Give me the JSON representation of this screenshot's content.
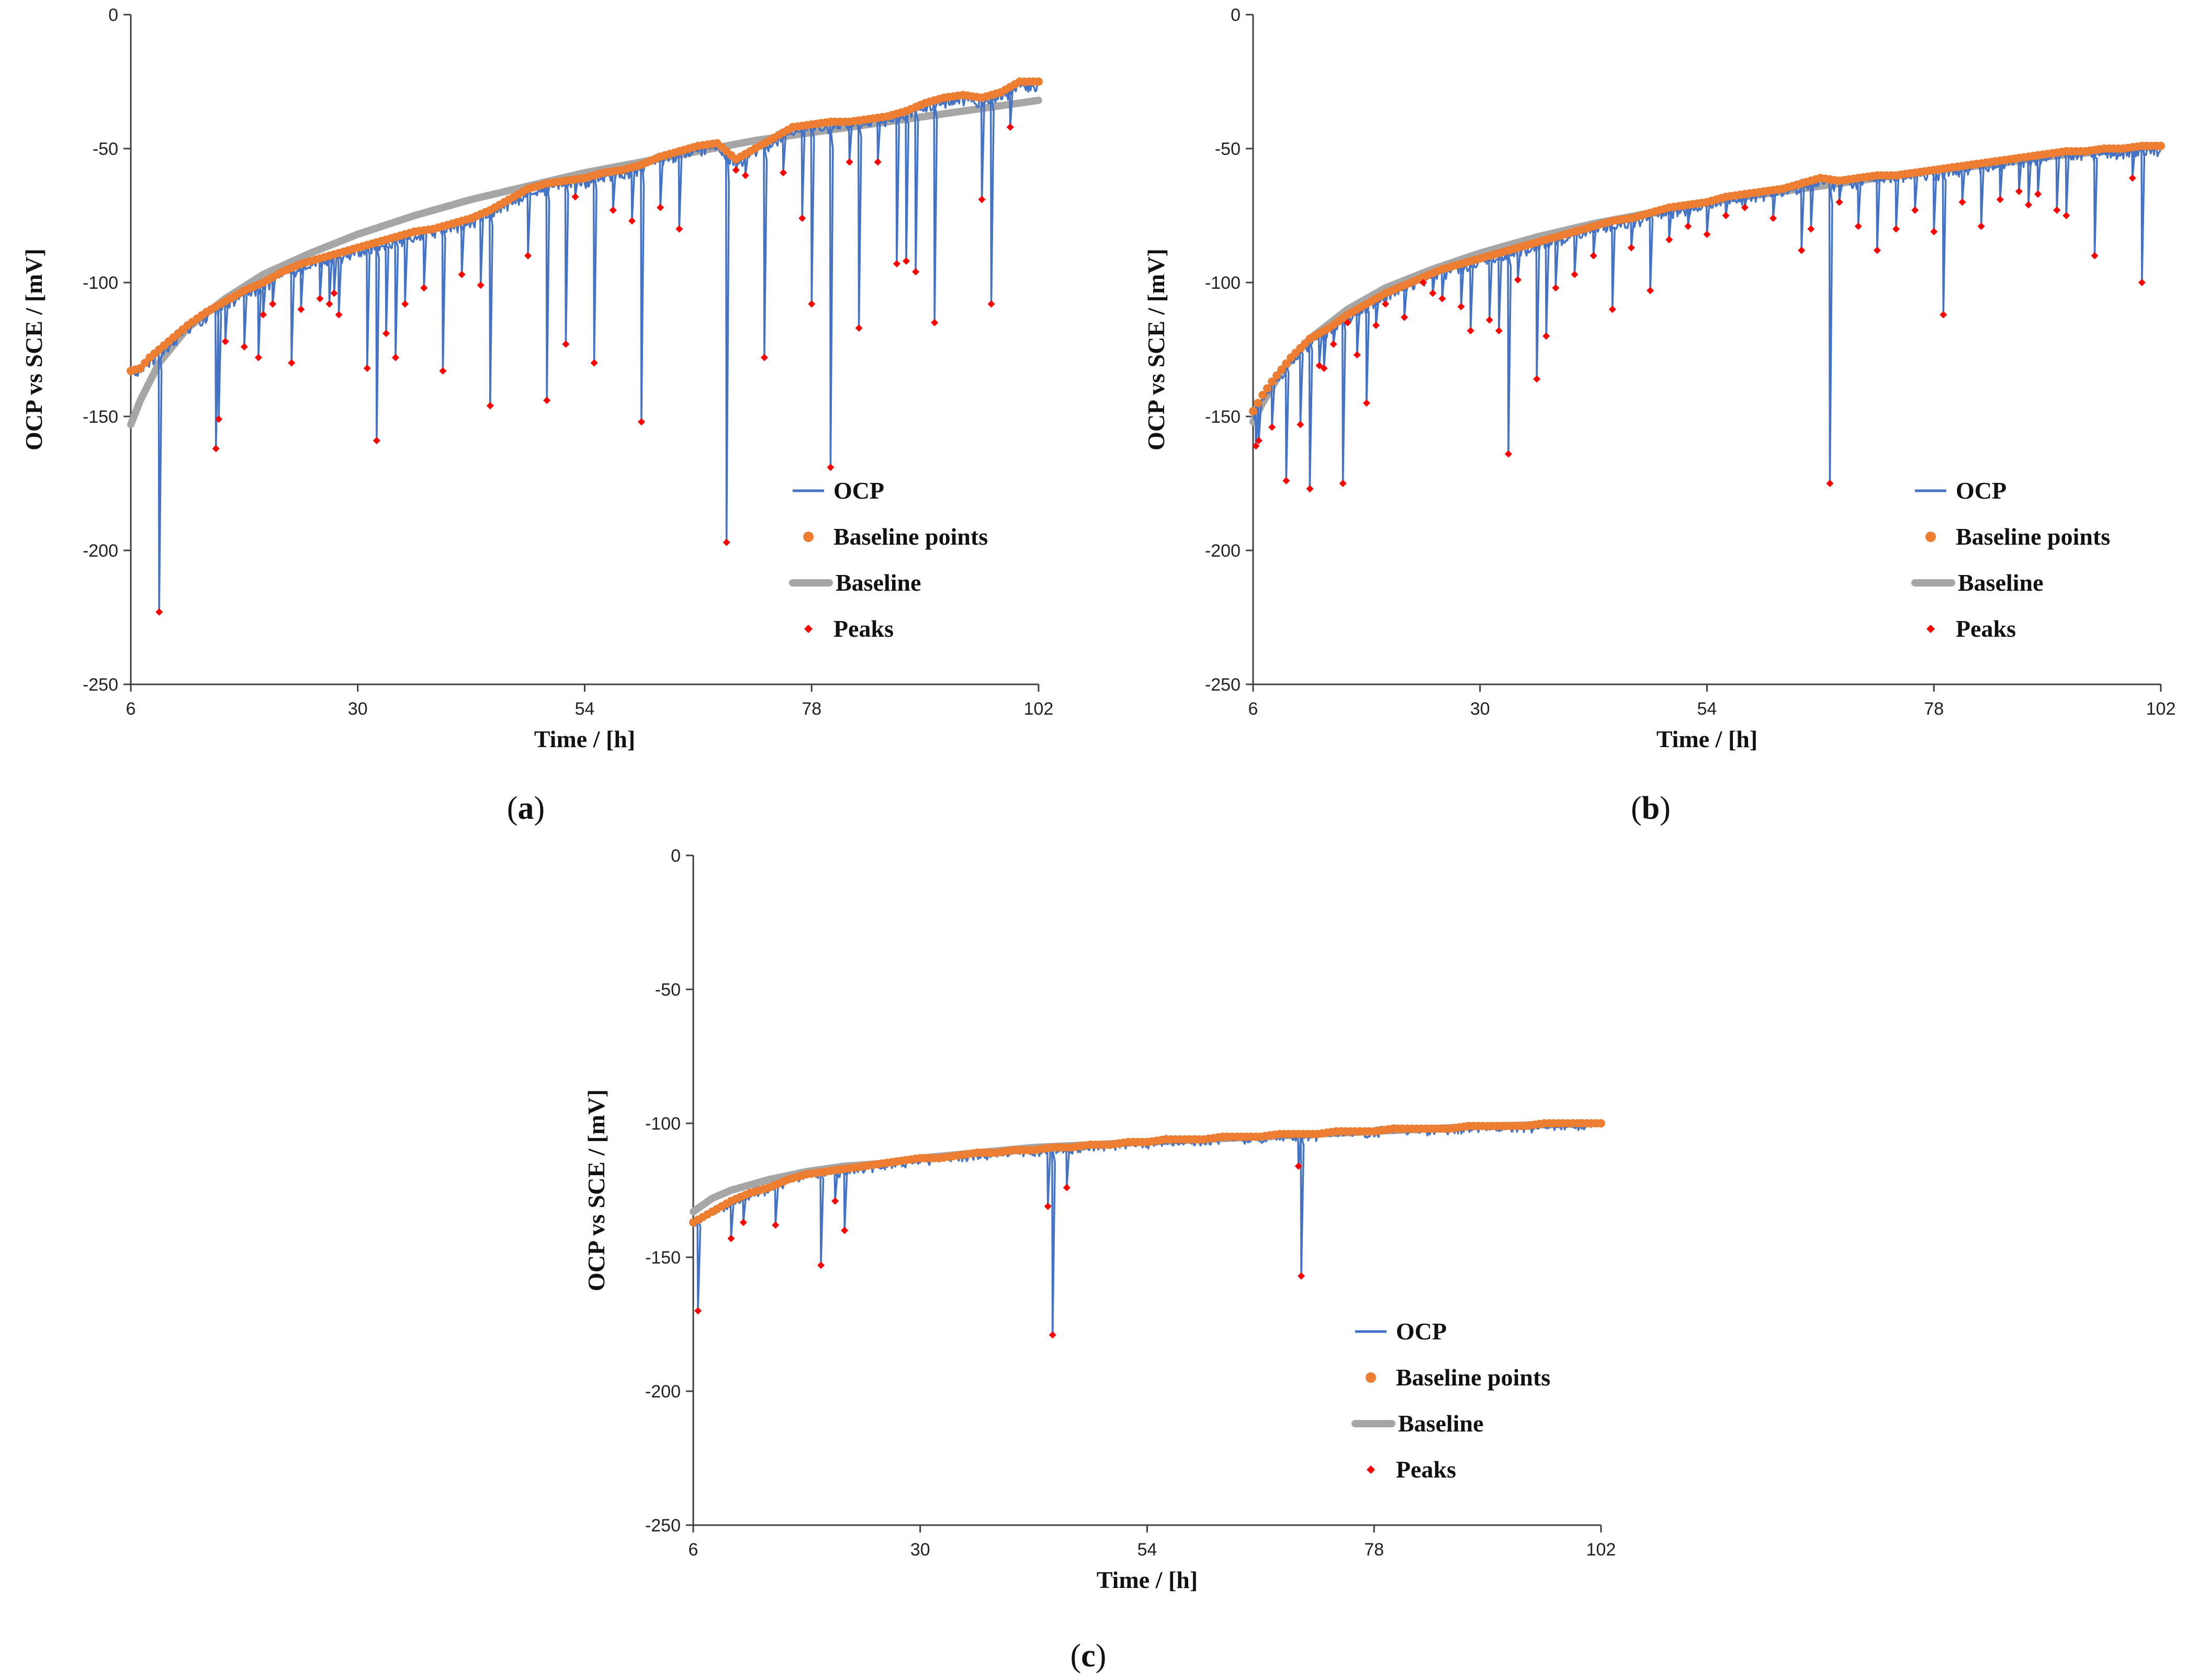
{
  "colors": {
    "ocp": "#4472C4",
    "baseline_points": "#ED7D31",
    "baseline": "#A6A6A6",
    "peaks": "#FF0000",
    "axis": "#404040"
  },
  "chart_data": [
    {
      "panel": "a",
      "type": "line",
      "caption": "(a)",
      "caption_letter": "a",
      "xlabel": "Time / [h]",
      "ylabel": "OCP vs SCE / [mV]",
      "xlim": [
        6,
        102
      ],
      "ylim": [
        -250,
        0
      ],
      "xticks": [
        6,
        30,
        54,
        78,
        102
      ],
      "yticks": [
        0,
        -50,
        -100,
        -150,
        -200,
        -250
      ],
      "legend": [
        "OCP",
        "Baseline points",
        "Baseline",
        "Peaks"
      ],
      "legend_position": "bottom-right",
      "baseline_curve": [
        [
          6,
          -153
        ],
        [
          7,
          -144
        ],
        [
          9,
          -130
        ],
        [
          12,
          -117
        ],
        [
          16,
          -106
        ],
        [
          20,
          -97
        ],
        [
          25,
          -89
        ],
        [
          30,
          -82
        ],
        [
          36,
          -75
        ],
        [
          42,
          -69
        ],
        [
          48,
          -64
        ],
        [
          54,
          -59
        ],
        [
          60,
          -55
        ],
        [
          66,
          -51
        ],
        [
          72,
          -47
        ],
        [
          78,
          -44
        ],
        [
          84,
          -41
        ],
        [
          90,
          -38
        ],
        [
          96,
          -35
        ],
        [
          102,
          -32
        ]
      ],
      "baseline_points": [
        [
          6,
          -133
        ],
        [
          7,
          -132
        ],
        [
          8,
          -128
        ],
        [
          10,
          -122
        ],
        [
          12,
          -116
        ],
        [
          14,
          -111
        ],
        [
          16,
          -107
        ],
        [
          18,
          -103
        ],
        [
          20,
          -100
        ],
        [
          22,
          -96
        ],
        [
          24,
          -93
        ],
        [
          26,
          -91
        ],
        [
          28,
          -89
        ],
        [
          30,
          -87
        ],
        [
          32,
          -85
        ],
        [
          34,
          -83
        ],
        [
          36,
          -81
        ],
        [
          38,
          -80
        ],
        [
          40,
          -78
        ],
        [
          42,
          -76
        ],
        [
          44,
          -73
        ],
        [
          46,
          -69
        ],
        [
          48,
          -65
        ],
        [
          50,
          -63
        ],
        [
          52,
          -62
        ],
        [
          54,
          -61
        ],
        [
          56,
          -59
        ],
        [
          58,
          -58
        ],
        [
          60,
          -56
        ],
        [
          62,
          -53
        ],
        [
          64,
          -51
        ],
        [
          66,
          -49
        ],
        [
          68,
          -48
        ],
        [
          70,
          -54
        ],
        [
          72,
          -50
        ],
        [
          74,
          -46
        ],
        [
          76,
          -42
        ],
        [
          78,
          -41
        ],
        [
          80,
          -40
        ],
        [
          82,
          -40
        ],
        [
          84,
          -39
        ],
        [
          86,
          -38
        ],
        [
          88,
          -36
        ],
        [
          90,
          -33
        ],
        [
          92,
          -31
        ],
        [
          94,
          -30
        ],
        [
          96,
          -31
        ],
        [
          98,
          -29
        ],
        [
          100,
          -25
        ],
        [
          102,
          -25
        ]
      ],
      "peaks": [
        [
          9,
          -223
        ],
        [
          15,
          -162
        ],
        [
          15.3,
          -151
        ],
        [
          16,
          -122
        ],
        [
          18,
          -124
        ],
        [
          19.5,
          -128
        ],
        [
          20,
          -112
        ],
        [
          21,
          -108
        ],
        [
          23,
          -130
        ],
        [
          24,
          -110
        ],
        [
          26,
          -106
        ],
        [
          27,
          -108
        ],
        [
          27.5,
          -104
        ],
        [
          28,
          -112
        ],
        [
          31,
          -132
        ],
        [
          32,
          -159
        ],
        [
          33,
          -119
        ],
        [
          34,
          -128
        ],
        [
          35,
          -108
        ],
        [
          37,
          -102
        ],
        [
          39,
          -133
        ],
        [
          41,
          -97
        ],
        [
          43,
          -101
        ],
        [
          44,
          -146
        ],
        [
          48,
          -90
        ],
        [
          50,
          -144
        ],
        [
          52,
          -123
        ],
        [
          53,
          -68
        ],
        [
          55,
          -130
        ],
        [
          57,
          -73
        ],
        [
          59,
          -77
        ],
        [
          60,
          -152
        ],
        [
          62,
          -72
        ],
        [
          64,
          -80
        ],
        [
          69,
          -197
        ],
        [
          70,
          -58
        ],
        [
          71,
          -60
        ],
        [
          73,
          -128
        ],
        [
          75,
          -59
        ],
        [
          77,
          -76
        ],
        [
          78,
          -108
        ],
        [
          80,
          -169
        ],
        [
          82,
          -55
        ],
        [
          83,
          -117
        ],
        [
          85,
          -55
        ],
        [
          87,
          -93
        ],
        [
          88,
          -92
        ],
        [
          89,
          -96
        ],
        [
          91,
          -115
        ],
        [
          96,
          -69
        ],
        [
          97,
          -108
        ],
        [
          99,
          -42
        ]
      ]
    },
    {
      "panel": "b",
      "type": "line",
      "caption": "(b)",
      "caption_letter": "b",
      "xlabel": "Time / [h]",
      "ylabel": "OCP vs SCE / [mV]",
      "xlim": [
        6,
        102
      ],
      "ylim": [
        -250,
        0
      ],
      "xticks": [
        6,
        30,
        54,
        78,
        102
      ],
      "yticks": [
        0,
        -50,
        -100,
        -150,
        -200,
        -250
      ],
      "legend": [
        "OCP",
        "Baseline points",
        "Baseline",
        "Peaks"
      ],
      "legend_position": "bottom-right",
      "baseline_curve": [
        [
          6,
          -152
        ],
        [
          7,
          -145
        ],
        [
          9,
          -133
        ],
        [
          12,
          -121
        ],
        [
          16,
          -110
        ],
        [
          20,
          -102
        ],
        [
          25,
          -95
        ],
        [
          30,
          -89
        ],
        [
          36,
          -83
        ],
        [
          42,
          -78
        ],
        [
          48,
          -74
        ],
        [
          54,
          -70
        ],
        [
          60,
          -67
        ],
        [
          66,
          -64
        ],
        [
          72,
          -61
        ],
        [
          78,
          -58
        ],
        [
          84,
          -56
        ],
        [
          90,
          -53
        ],
        [
          96,
          -51
        ],
        [
          102,
          -49
        ]
      ],
      "baseline_points": [
        [
          6,
          -148
        ],
        [
          7,
          -142
        ],
        [
          8,
          -137
        ],
        [
          10,
          -128
        ],
        [
          12,
          -121
        ],
        [
          14,
          -117
        ],
        [
          16,
          -112
        ],
        [
          18,
          -108
        ],
        [
          20,
          -104
        ],
        [
          22,
          -101
        ],
        [
          24,
          -98
        ],
        [
          26,
          -95
        ],
        [
          28,
          -93
        ],
        [
          30,
          -91
        ],
        [
          32,
          -89
        ],
        [
          34,
          -87
        ],
        [
          36,
          -85
        ],
        [
          38,
          -83
        ],
        [
          40,
          -81
        ],
        [
          42,
          -79
        ],
        [
          44,
          -77
        ],
        [
          46,
          -76
        ],
        [
          48,
          -74
        ],
        [
          50,
          -72
        ],
        [
          52,
          -71
        ],
        [
          54,
          -70
        ],
        [
          56,
          -68
        ],
        [
          58,
          -67
        ],
        [
          60,
          -66
        ],
        [
          62,
          -65
        ],
        [
          64,
          -63
        ],
        [
          66,
          -61
        ],
        [
          68,
          -62
        ],
        [
          70,
          -61
        ],
        [
          72,
          -60
        ],
        [
          74,
          -60
        ],
        [
          76,
          -59
        ],
        [
          78,
          -58
        ],
        [
          80,
          -57
        ],
        [
          82,
          -56
        ],
        [
          84,
          -55
        ],
        [
          86,
          -54
        ],
        [
          88,
          -53
        ],
        [
          90,
          -52
        ],
        [
          92,
          -51
        ],
        [
          94,
          -51
        ],
        [
          96,
          -50
        ],
        [
          98,
          -50
        ],
        [
          100,
          -49
        ],
        [
          102,
          -49
        ]
      ],
      "peaks": [
        [
          6.3,
          -161
        ],
        [
          6.6,
          -159
        ],
        [
          8,
          -154
        ],
        [
          9.5,
          -174
        ],
        [
          11,
          -153
        ],
        [
          12,
          -177
        ],
        [
          13,
          -131
        ],
        [
          13.5,
          -132
        ],
        [
          14.5,
          -123
        ],
        [
          15.5,
          -175
        ],
        [
          16,
          -115
        ],
        [
          17,
          -127
        ],
        [
          18,
          -145
        ],
        [
          19,
          -116
        ],
        [
          20,
          -108
        ],
        [
          22,
          -113
        ],
        [
          24,
          -100
        ],
        [
          25,
          -104
        ],
        [
          26,
          -106
        ],
        [
          28,
          -109
        ],
        [
          29,
          -118
        ],
        [
          31,
          -114
        ],
        [
          32,
          -118
        ],
        [
          33,
          -164
        ],
        [
          34,
          -99
        ],
        [
          36,
          -136
        ],
        [
          37,
          -120
        ],
        [
          38,
          -102
        ],
        [
          40,
          -97
        ],
        [
          42,
          -90
        ],
        [
          44,
          -110
        ],
        [
          46,
          -87
        ],
        [
          48,
          -103
        ],
        [
          50,
          -84
        ],
        [
          52,
          -79
        ],
        [
          54,
          -82
        ],
        [
          56,
          -75
        ],
        [
          58,
          -72
        ],
        [
          61,
          -76
        ],
        [
          64,
          -88
        ],
        [
          65,
          -80
        ],
        [
          67,
          -175
        ],
        [
          68,
          -70
        ],
        [
          70,
          -79
        ],
        [
          72,
          -88
        ],
        [
          74,
          -80
        ],
        [
          76,
          -73
        ],
        [
          78,
          -81
        ],
        [
          79,
          -112
        ],
        [
          81,
          -70
        ],
        [
          83,
          -79
        ],
        [
          85,
          -69
        ],
        [
          87,
          -66
        ],
        [
          88,
          -71
        ],
        [
          89,
          -67
        ],
        [
          91,
          -73
        ],
        [
          92,
          -75
        ],
        [
          95,
          -90
        ],
        [
          99,
          -61
        ],
        [
          100,
          -100
        ]
      ]
    },
    {
      "panel": "c",
      "type": "line",
      "caption": "(c)",
      "caption_letter": "c",
      "xlabel": "Time / [h]",
      "ylabel": "OCP vs SCE / [mV]",
      "xlim": [
        6,
        102
      ],
      "ylim": [
        -250,
        0
      ],
      "xticks": [
        6,
        30,
        54,
        78,
        102
      ],
      "yticks": [
        0,
        -50,
        -100,
        -150,
        -200,
        -250
      ],
      "legend": [
        "OCP",
        "Baseline points",
        "Baseline",
        "Peaks"
      ],
      "legend_position": "bottom-right",
      "baseline_curve": [
        [
          6,
          -133
        ],
        [
          8,
          -128
        ],
        [
          10,
          -125
        ],
        [
          14,
          -121
        ],
        [
          18,
          -118
        ],
        [
          22,
          -116
        ],
        [
          26,
          -115
        ],
        [
          30,
          -113
        ],
        [
          36,
          -111
        ],
        [
          42,
          -109
        ],
        [
          48,
          -108
        ],
        [
          54,
          -107
        ],
        [
          60,
          -106
        ],
        [
          66,
          -105
        ],
        [
          72,
          -104
        ],
        [
          78,
          -103
        ],
        [
          84,
          -102
        ],
        [
          90,
          -101
        ],
        [
          96,
          -100.5
        ],
        [
          102,
          -100
        ]
      ],
      "baseline_points": [
        [
          6,
          -137
        ],
        [
          8,
          -133
        ],
        [
          10,
          -129
        ],
        [
          12,
          -126
        ],
        [
          14,
          -124
        ],
        [
          16,
          -121
        ],
        [
          18,
          -119
        ],
        [
          20,
          -118
        ],
        [
          22,
          -117
        ],
        [
          24,
          -116
        ],
        [
          26,
          -115
        ],
        [
          28,
          -114
        ],
        [
          30,
          -113
        ],
        [
          32,
          -113
        ],
        [
          34,
          -112
        ],
        [
          36,
          -111
        ],
        [
          38,
          -111
        ],
        [
          40,
          -110
        ],
        [
          42,
          -110
        ],
        [
          44,
          -109
        ],
        [
          46,
          -109
        ],
        [
          48,
          -108
        ],
        [
          50,
          -108
        ],
        [
          52,
          -107
        ],
        [
          54,
          -107
        ],
        [
          56,
          -106
        ],
        [
          58,
          -106
        ],
        [
          60,
          -106
        ],
        [
          62,
          -105
        ],
        [
          64,
          -105
        ],
        [
          66,
          -105
        ],
        [
          68,
          -104
        ],
        [
          70,
          -104
        ],
        [
          72,
          -104
        ],
        [
          74,
          -103
        ],
        [
          76,
          -103
        ],
        [
          78,
          -103
        ],
        [
          80,
          -102
        ],
        [
          82,
          -102
        ],
        [
          84,
          -102
        ],
        [
          86,
          -102
        ],
        [
          88,
          -101
        ],
        [
          90,
          -101
        ],
        [
          92,
          -101
        ],
        [
          94,
          -101
        ],
        [
          96,
          -100
        ],
        [
          98,
          -100
        ],
        [
          100,
          -100
        ],
        [
          102,
          -100
        ]
      ],
      "peaks": [
        [
          6.5,
          -170
        ],
        [
          10,
          -143
        ],
        [
          11.3,
          -137
        ],
        [
          14.7,
          -138
        ],
        [
          19.5,
          -153
        ],
        [
          21,
          -129
        ],
        [
          22,
          -140
        ],
        [
          43.5,
          -131
        ],
        [
          44,
          -179
        ],
        [
          45.5,
          -124
        ],
        [
          70,
          -116
        ],
        [
          70.3,
          -157
        ]
      ]
    }
  ]
}
